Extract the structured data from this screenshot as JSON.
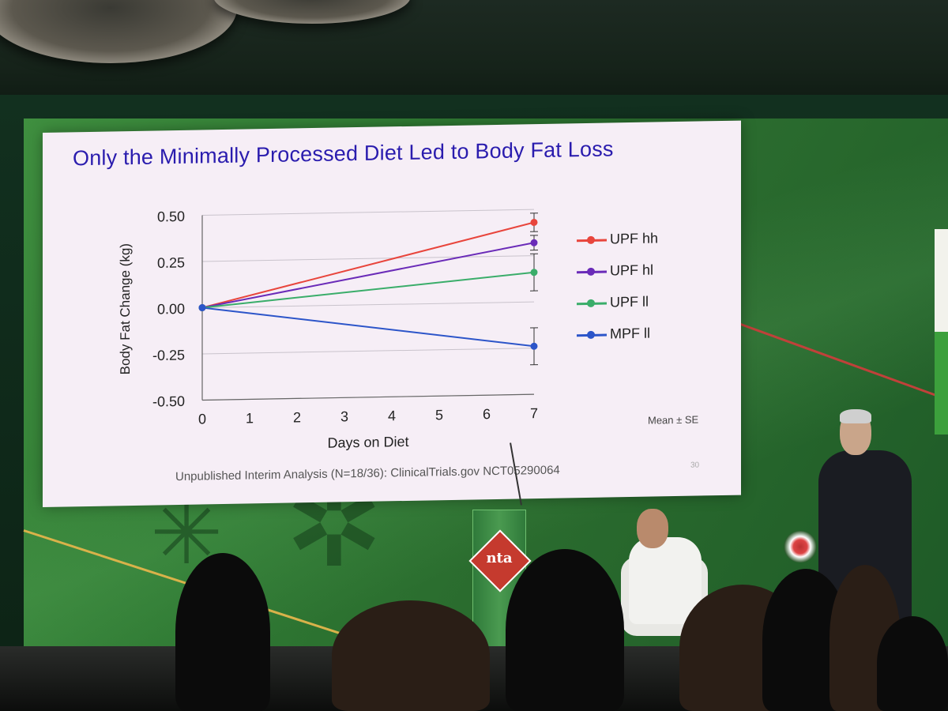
{
  "slide": {
    "title": "Only the Minimally Processed Diet Led to Body Fat Loss",
    "footnote": "Unpublished Interim Analysis (N=18/36): ClinicalTrials.gov NCT05290064",
    "note": "Mean ± SE",
    "slide_number": "30"
  },
  "chart_data": {
    "type": "line",
    "title": "Only the Minimally Processed Diet Led to Body Fat Loss",
    "xlabel": "Days on Diet",
    "ylabel": "Body Fat Change (kg)",
    "x_ticks": [
      0,
      1,
      2,
      3,
      4,
      5,
      6,
      7
    ],
    "y_ticks": [
      -0.5,
      -0.25,
      0.0,
      0.25,
      0.5
    ],
    "y_tick_labels": [
      "-0.50",
      "-0.25",
      "0.00",
      "0.25",
      "0.50"
    ],
    "xlim": [
      0,
      7
    ],
    "ylim": [
      -0.5,
      0.5
    ],
    "grid": true,
    "legend_position": "right",
    "series": [
      {
        "name": "UPF hh",
        "color": "#e8453c",
        "x": [
          0,
          7
        ],
        "y": [
          0.0,
          0.43
        ],
        "se_end": 0.05
      },
      {
        "name": "UPF hl",
        "color": "#6a2bb8",
        "x": [
          0,
          7
        ],
        "y": [
          0.0,
          0.32
        ],
        "se_end": 0.04
      },
      {
        "name": "UPF ll",
        "color": "#3aad6a",
        "x": [
          0,
          7
        ],
        "y": [
          0.0,
          0.16
        ],
        "se_end": 0.1
      },
      {
        "name": "MPF ll",
        "color": "#2c55c9",
        "x": [
          0,
          7
        ],
        "y": [
          0.0,
          -0.24
        ],
        "se_end": 0.1
      }
    ]
  },
  "venue": {
    "podium_logo": "nta"
  }
}
